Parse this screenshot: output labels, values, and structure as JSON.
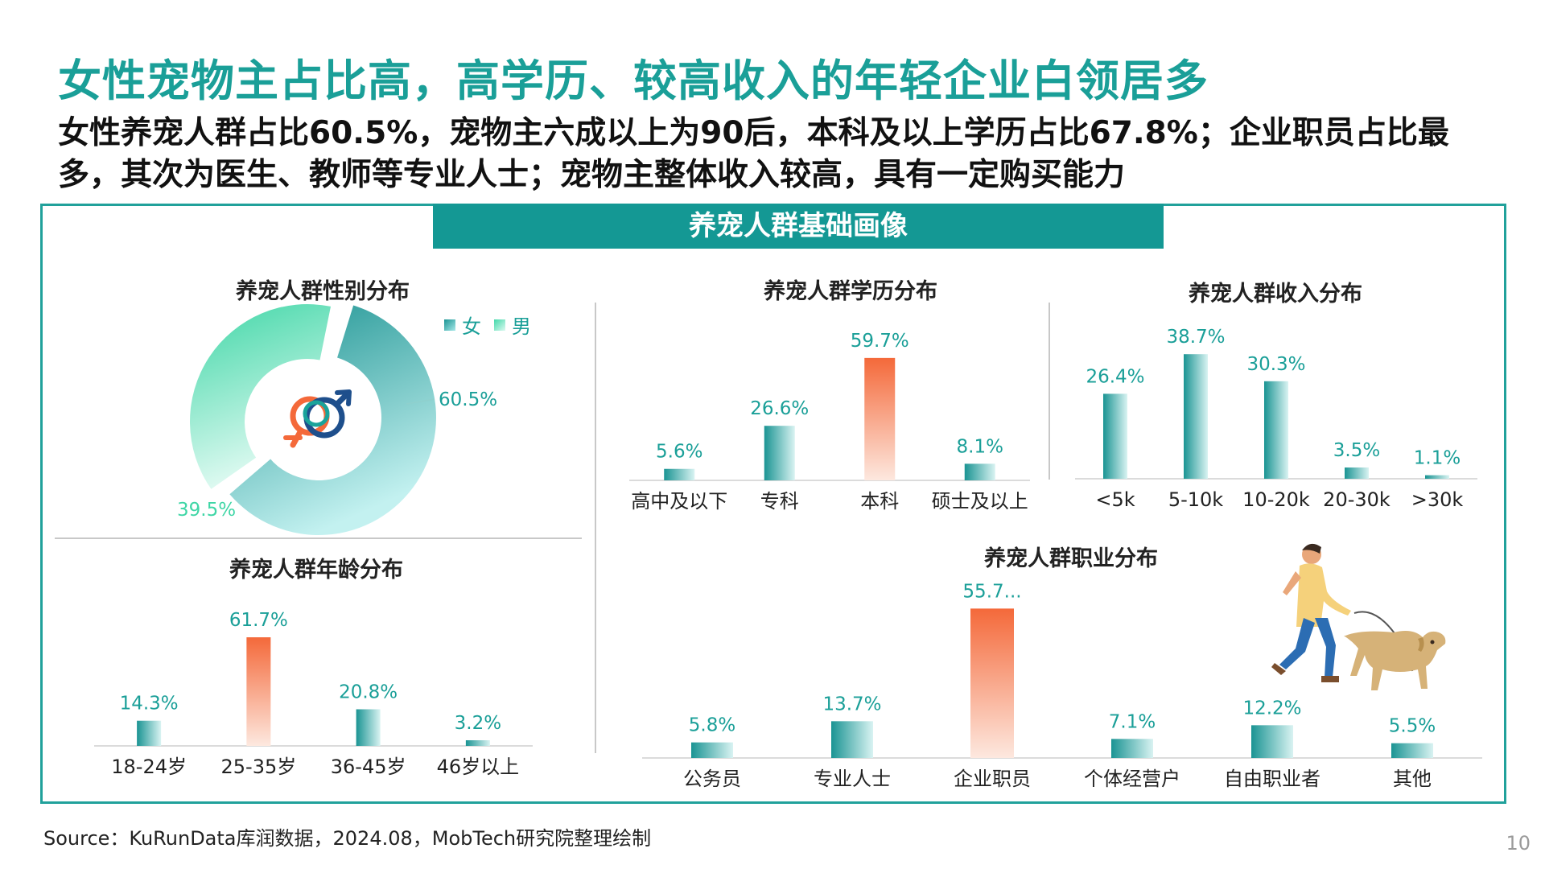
{
  "header": {
    "title": "女性宠物主占比高，高学历、较高收入的年轻企业白领居多",
    "subtitle": "女性养宠人群占比60.5%，宠物主六成以上为90后，本科及以上学历占比67.8%；企业职员占比最多，其次为医生、教师等专业人士；宠物主整体收入较高，具有一定购买能力"
  },
  "panel": {
    "banner": "养宠人群基础画像"
  },
  "footer": {
    "source": "Source：KuRunData库润数据，2024.08，MobTech研究院整理绘制",
    "page_number": "10"
  },
  "colors": {
    "teal": "#1a9f98",
    "teal_dark": "#149894",
    "orange": "#f4693a",
    "female_gradient": [
      "#1a9493",
      "#a8e9ea"
    ],
    "male_gradient": [
      "#42d8a9",
      "#dcfaf1"
    ]
  },
  "icons": {
    "gender_symbol": "gender-symbol-icon",
    "dog_walker": "person-walking-dog-illustration"
  },
  "chart_data": [
    {
      "id": "gender",
      "type": "pie",
      "title": "养宠人群性别分布",
      "legend": [
        "女",
        "男"
      ],
      "categories": [
        "女",
        "男"
      ],
      "values": [
        60.5,
        39.5
      ],
      "labels": [
        "60.5%",
        "39.5%"
      ]
    },
    {
      "id": "education",
      "type": "bar",
      "title": "养宠人群学历分布",
      "categories": [
        "高中及以下",
        "专科",
        "本科",
        "硕士及以上"
      ],
      "values": [
        5.6,
        26.6,
        59.7,
        8.1
      ],
      "labels": [
        "5.6%",
        "26.6%",
        "59.7%",
        "8.1%"
      ],
      "highlight_index": 2,
      "ylim": [
        0,
        62
      ]
    },
    {
      "id": "income",
      "type": "bar",
      "title": "养宠人群收入分布",
      "categories": [
        "<5k",
        "5-10k",
        "10-20k",
        "20-30k",
        ">30k"
      ],
      "values": [
        26.4,
        38.7,
        30.3,
        3.5,
        1.1
      ],
      "labels": [
        "26.4%",
        "38.7%",
        "30.3%",
        "3.5%",
        "1.1%"
      ],
      "highlight_index": -1,
      "ylim": [
        0,
        42
      ]
    },
    {
      "id": "age",
      "type": "bar",
      "title": "养宠人群年龄分布",
      "categories": [
        "18-24岁",
        "25-35岁",
        "36-45岁",
        "46岁以上"
      ],
      "values": [
        14.3,
        61.7,
        20.8,
        3.2
      ],
      "labels": [
        "14.3%",
        "61.7%",
        "20.8%",
        "3.2%"
      ],
      "highlight_index": 1,
      "ylim": [
        0,
        64
      ]
    },
    {
      "id": "occupation",
      "type": "bar",
      "title": "养宠人群职业分布",
      "categories": [
        "公务员",
        "专业人士",
        "企业职员",
        "个体经营户",
        "自由职业者",
        "其他"
      ],
      "values": [
        5.8,
        13.7,
        55.7,
        7.1,
        12.2,
        5.5
      ],
      "labels": [
        "5.8%",
        "13.7%",
        "55.7...",
        "7.1%",
        "12.2%",
        "5.5%"
      ],
      "highlight_index": 2,
      "ylim": [
        0,
        57
      ]
    }
  ]
}
